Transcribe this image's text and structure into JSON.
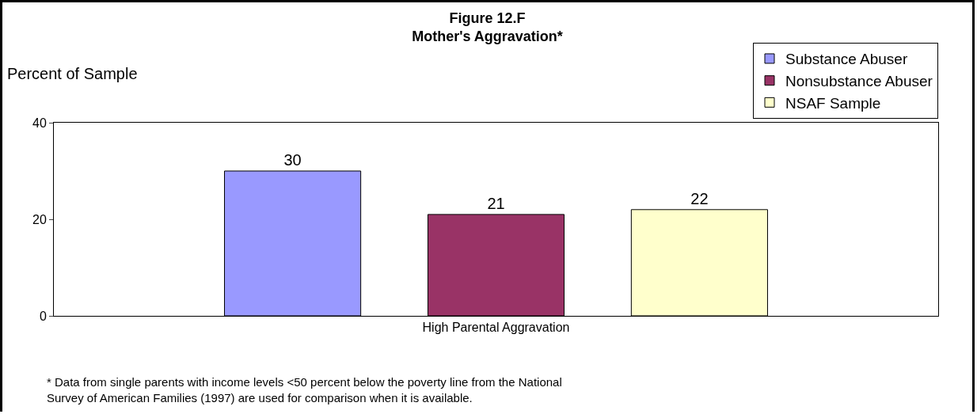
{
  "chart_data": {
    "type": "bar",
    "title": "Figure 12.F\nMother's Aggravation*",
    "ylabel": "Percent of Sample",
    "categories": [
      "High Parental Aggravation"
    ],
    "series": [
      {
        "name": "Substance Abuser",
        "color": "#9999ff",
        "values": [
          30
        ]
      },
      {
        "name": "Nonsubstance Abuser",
        "color": "#993366",
        "values": [
          21
        ]
      },
      {
        "name": "NSAF Sample",
        "color": "#ffffcc",
        "values": [
          22
        ]
      }
    ],
    "ylim": [
      0,
      40
    ],
    "yticks": [
      0,
      20,
      40
    ],
    "grid": false,
    "legend": "top right",
    "data_labels": true,
    "annotations": [
      "* Data from single parents with income levels <50 percent below the poverty line from the National\nSurvey of American Families (1997) are used for comparison when it is available."
    ]
  }
}
